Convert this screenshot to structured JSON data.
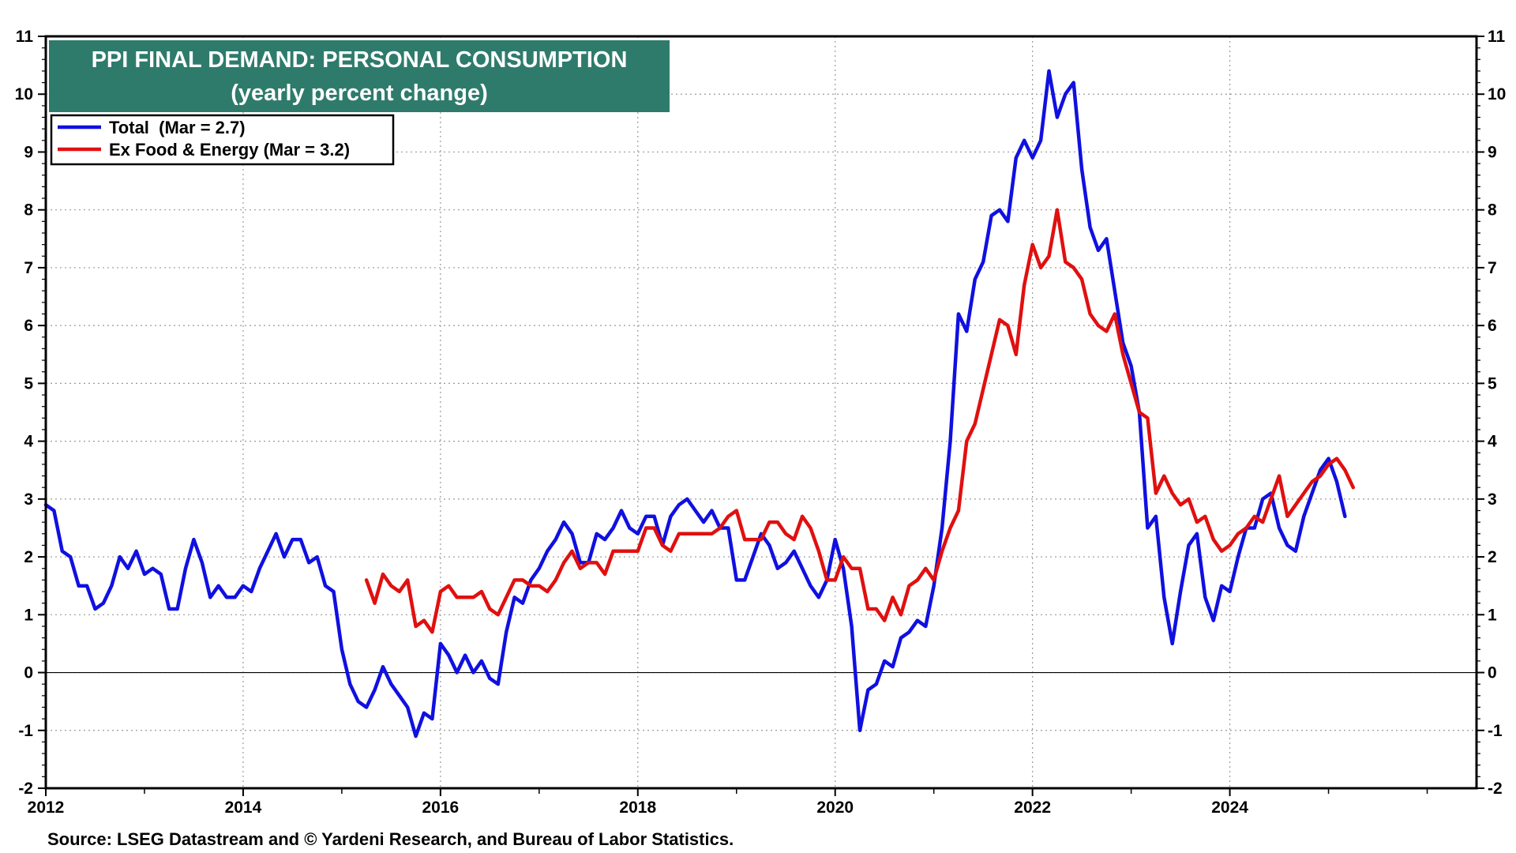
{
  "chart_data": {
    "type": "line",
    "title": "PPI FINAL DEMAND: PERSONAL CONSUMPTION",
    "subtitle": "(yearly percent change)",
    "ylim": [
      -2,
      11
    ],
    "y_ticks": [
      "11",
      "10",
      "9",
      "8",
      "7",
      "6",
      "5",
      "4",
      "3",
      "2",
      "1",
      "0",
      "-1",
      "-2"
    ],
    "xlim": [
      2012,
      2026.5
    ],
    "x_ticks": [
      "2012",
      "2014",
      "2016",
      "2018",
      "2020",
      "2022",
      "2024"
    ],
    "grid": true,
    "legend_position": "top-left",
    "source": "Source: LSEG Datastream and © Yardeni Research, and Bureau of Labor Statistics.",
    "series": [
      {
        "name": "Total",
        "label": "Total  (Mar = 2.7)",
        "color": "#1010e0",
        "start": 2012.0,
        "step": 0.0833333,
        "values": [
          2.9,
          2.8,
          2.1,
          2.0,
          1.5,
          1.5,
          1.1,
          1.2,
          1.5,
          2.0,
          1.8,
          2.1,
          1.7,
          1.8,
          1.7,
          1.1,
          1.1,
          1.8,
          2.3,
          1.9,
          1.3,
          1.5,
          1.3,
          1.3,
          1.5,
          1.4,
          1.8,
          2.1,
          2.4,
          2.0,
          2.3,
          2.3,
          1.9,
          2.0,
          1.5,
          1.4,
          0.4,
          -0.2,
          -0.5,
          -0.6,
          -0.3,
          0.1,
          -0.2,
          -0.4,
          -0.6,
          -1.1,
          -0.7,
          -0.8,
          0.5,
          0.3,
          0.0,
          0.3,
          0.0,
          0.2,
          -0.1,
          -0.2,
          0.7,
          1.3,
          1.2,
          1.6,
          1.8,
          2.1,
          2.3,
          2.6,
          2.4,
          1.9,
          1.9,
          2.4,
          2.3,
          2.5,
          2.8,
          2.5,
          2.4,
          2.7,
          2.7,
          2.2,
          2.7,
          2.9,
          3.0,
          2.8,
          2.6,
          2.8,
          2.5,
          2.5,
          1.6,
          1.6,
          2.0,
          2.4,
          2.2,
          1.8,
          1.9,
          2.1,
          1.8,
          1.5,
          1.3,
          1.6,
          2.3,
          1.8,
          0.8,
          -1.0,
          -0.3,
          -0.2,
          0.2,
          0.1,
          0.6,
          0.7,
          0.9,
          0.8,
          1.5,
          2.5,
          4.0,
          6.2,
          5.9,
          6.8,
          7.1,
          7.9,
          8.0,
          7.8,
          8.9,
          9.2,
          8.9,
          9.2,
          10.4,
          9.6,
          10.0,
          10.2,
          8.7,
          7.7,
          7.3,
          7.5,
          6.6,
          5.7,
          5.3,
          4.5,
          2.5,
          2.7,
          1.3,
          0.5,
          1.4,
          2.2,
          2.4,
          1.3,
          0.9,
          1.5,
          1.4,
          2.0,
          2.5,
          2.5,
          3.0,
          3.1,
          2.5,
          2.2,
          2.1,
          2.7,
          3.1,
          3.5,
          3.7,
          3.3,
          2.7
        ]
      },
      {
        "name": "Ex Food & Energy",
        "label": "Ex Food & Energy (Mar = 3.2)",
        "color": "#e01010",
        "start": 2015.25,
        "step": 0.0833333,
        "values": [
          1.6,
          1.2,
          1.7,
          1.5,
          1.4,
          1.6,
          0.8,
          0.9,
          0.7,
          1.4,
          1.5,
          1.3,
          1.3,
          1.3,
          1.4,
          1.1,
          1.0,
          1.3,
          1.6,
          1.6,
          1.5,
          1.5,
          1.4,
          1.6,
          1.9,
          2.1,
          1.8,
          1.9,
          1.9,
          1.7,
          2.1,
          2.1,
          2.1,
          2.1,
          2.5,
          2.5,
          2.2,
          2.1,
          2.4,
          2.4,
          2.4,
          2.4,
          2.4,
          2.5,
          2.7,
          2.8,
          2.3,
          2.3,
          2.3,
          2.6,
          2.6,
          2.4,
          2.3,
          2.7,
          2.5,
          2.1,
          1.6,
          1.6,
          2.0,
          1.8,
          1.8,
          1.1,
          1.1,
          0.9,
          1.3,
          1.0,
          1.5,
          1.6,
          1.8,
          1.6,
          2.1,
          2.5,
          2.8,
          4.0,
          4.3,
          4.9,
          5.5,
          6.1,
          6.0,
          5.5,
          6.7,
          7.4,
          7.0,
          7.2,
          8.0,
          7.1,
          7.0,
          6.8,
          6.2,
          6.0,
          5.9,
          6.2,
          5.5,
          5.0,
          4.5,
          4.4,
          3.1,
          3.4,
          3.1,
          2.9,
          3.0,
          2.6,
          2.7,
          2.3,
          2.1,
          2.2,
          2.4,
          2.5,
          2.7,
          2.6,
          3.0,
          3.4,
          2.7,
          2.9,
          3.1,
          3.3,
          3.4,
          3.6,
          3.7,
          3.5,
          3.2
        ]
      }
    ]
  }
}
